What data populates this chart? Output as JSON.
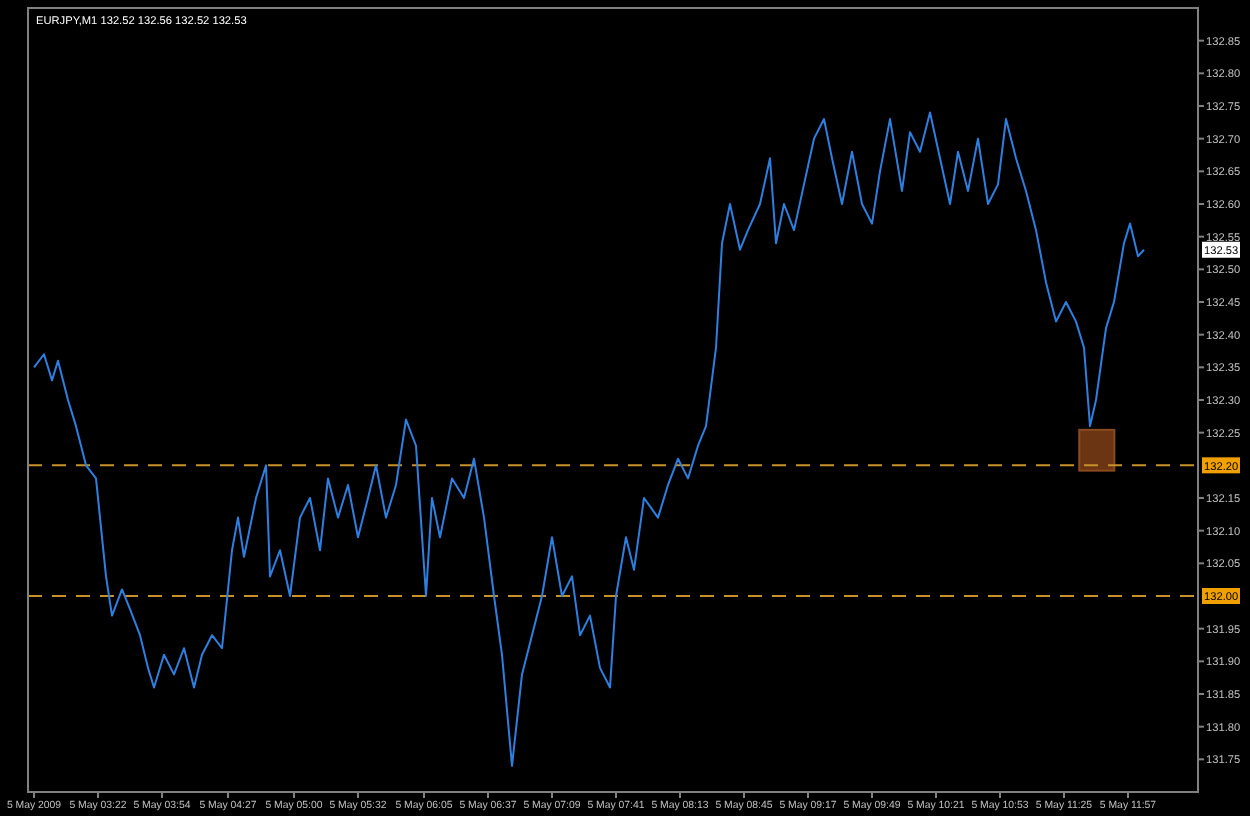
{
  "chart_data": {
    "type": "line",
    "title": "EURJPY,M1  132.52 132.56 132.52 132.53",
    "x": [
      "2009-05-05T02:50",
      "2009-05-05T02:55",
      "2009-05-05T02:59",
      "2009-05-05T03:02",
      "2009-05-05T03:07",
      "2009-05-05T03:11",
      "2009-05-05T03:16",
      "2009-05-05T03:21",
      "2009-05-05T03:26",
      "2009-05-05T03:29",
      "2009-05-05T03:34",
      "2009-05-05T03:38",
      "2009-05-05T03:43",
      "2009-05-05T03:47",
      "2009-05-05T03:50",
      "2009-05-05T03:55",
      "2009-05-05T04:00",
      "2009-05-05T04:05",
      "2009-05-05T04:10",
      "2009-05-05T04:14",
      "2009-05-05T04:19",
      "2009-05-05T04:24",
      "2009-05-05T04:29",
      "2009-05-05T04:32",
      "2009-05-05T04:35",
      "2009-05-05T04:41",
      "2009-05-05T04:46",
      "2009-05-05T04:48",
      "2009-05-05T04:53",
      "2009-05-05T04:58",
      "2009-05-05T05:03",
      "2009-05-05T05:08",
      "2009-05-05T05:13",
      "2009-05-05T05:17",
      "2009-05-05T05:22",
      "2009-05-05T05:27",
      "2009-05-05T05:32",
      "2009-05-05T05:37",
      "2009-05-05T05:41",
      "2009-05-05T05:46",
      "2009-05-05T05:51",
      "2009-05-05T05:56",
      "2009-05-05T06:01",
      "2009-05-05T06:06",
      "2009-05-05T06:09",
      "2009-05-05T06:13",
      "2009-05-05T06:19",
      "2009-05-05T06:25",
      "2009-05-05T06:30",
      "2009-05-05T06:35",
      "2009-05-05T06:40",
      "2009-05-05T06:44",
      "2009-05-05T06:49",
      "2009-05-05T06:54",
      "2009-05-05T06:59",
      "2009-05-05T07:04",
      "2009-05-05T07:09",
      "2009-05-05T07:14",
      "2009-05-05T07:19",
      "2009-05-05T07:23",
      "2009-05-05T07:28",
      "2009-05-05T07:33",
      "2009-05-05T07:38",
      "2009-05-05T07:41",
      "2009-05-05T07:46",
      "2009-05-05T07:50",
      "2009-05-05T07:55",
      "2009-05-05T08:02",
      "2009-05-05T08:07",
      "2009-05-05T08:12",
      "2009-05-05T08:17",
      "2009-05-05T08:22",
      "2009-05-05T08:26",
      "2009-05-05T08:31",
      "2009-05-05T08:34",
      "2009-05-05T08:38",
      "2009-05-05T08:43",
      "2009-05-05T08:47",
      "2009-05-05T08:53",
      "2009-05-05T08:58",
      "2009-05-05T09:01",
      "2009-05-05T09:05",
      "2009-05-05T09:10",
      "2009-05-05T09:15",
      "2009-05-05T09:20",
      "2009-05-05T09:25",
      "2009-05-05T09:29",
      "2009-05-05T09:34",
      "2009-05-05T09:39",
      "2009-05-05T09:44",
      "2009-05-05T09:49",
      "2009-05-05T09:53",
      "2009-05-05T09:58",
      "2009-05-05T10:04",
      "2009-05-05T10:08",
      "2009-05-05T10:13",
      "2009-05-05T10:18",
      "2009-05-05T10:23",
      "2009-05-05T10:28",
      "2009-05-05T10:32",
      "2009-05-05T10:37",
      "2009-05-05T10:42",
      "2009-05-05T10:47",
      "2009-05-05T10:52",
      "2009-05-05T10:56",
      "2009-05-05T11:01",
      "2009-05-05T11:06",
      "2009-05-05T11:11",
      "2009-05-05T11:16",
      "2009-05-05T11:21",
      "2009-05-05T11:26",
      "2009-05-05T11:31",
      "2009-05-05T11:35",
      "2009-05-05T11:38",
      "2009-05-05T11:41",
      "2009-05-05T11:46",
      "2009-05-05T11:50",
      "2009-05-05T11:55",
      "2009-05-05T11:58",
      "2009-05-05T12:02",
      "2009-05-05T12:05"
    ],
    "series": [
      {
        "color": "#2f7fe0",
        "values": [
          132.35,
          132.37,
          132.33,
          132.36,
          132.3,
          132.26,
          132.2,
          132.18,
          132.03,
          131.97,
          132.01,
          131.98,
          131.94,
          131.89,
          131.86,
          131.91,
          131.88,
          131.92,
          131.86,
          131.91,
          131.94,
          131.92,
          132.07,
          132.12,
          132.06,
          132.15,
          132.2,
          132.03,
          132.07,
          132.0,
          132.12,
          132.15,
          132.07,
          132.18,
          132.12,
          132.17,
          132.09,
          132.15,
          132.2,
          132.12,
          132.17,
          132.27,
          132.23,
          132.0,
          132.15,
          132.09,
          132.18,
          132.15,
          132.21,
          132.12,
          132.0,
          131.91,
          131.74,
          131.88,
          131.94,
          132.0,
          132.09,
          132.0,
          132.03,
          131.94,
          131.97,
          131.89,
          131.86,
          132.0,
          132.09,
          132.04,
          132.15,
          132.12,
          132.17,
          132.21,
          132.18,
          132.23,
          132.26,
          132.38,
          132.54,
          132.6,
          132.53,
          132.56,
          132.6,
          132.67,
          132.54,
          132.6,
          132.56,
          132.63,
          132.7,
          132.73,
          132.67,
          132.6,
          132.68,
          132.6,
          132.57,
          132.65,
          132.73,
          132.62,
          132.71,
          132.68,
          132.74,
          132.67,
          132.6,
          132.68,
          132.62,
          132.7,
          132.6,
          132.63,
          132.73,
          132.67,
          132.62,
          132.56,
          132.48,
          132.42,
          132.45,
          132.42,
          132.38,
          132.26,
          132.3,
          132.41,
          132.45,
          132.54,
          132.57,
          132.52,
          132.53
        ]
      }
    ],
    "xlim": [
      "2009-05-05T02:47",
      "2009-05-05T12:32"
    ],
    "xticks": [
      {
        "value": "2009-05-05T02:50",
        "label": "5 May 2009"
      },
      {
        "value": "2009-05-05T03:22",
        "label": "5 May 03:22"
      },
      {
        "value": "2009-05-05T03:54",
        "label": "5 May 03:54"
      },
      {
        "value": "2009-05-05T04:27",
        "label": "5 May 04:27"
      },
      {
        "value": "2009-05-05T05:00",
        "label": "5 May 05:00"
      },
      {
        "value": "2009-05-05T05:32",
        "label": "5 May 05:32"
      },
      {
        "value": "2009-05-05T06:05",
        "label": "5 May 06:05"
      },
      {
        "value": "2009-05-05T06:37",
        "label": "5 May 06:37"
      },
      {
        "value": "2009-05-05T07:09",
        "label": "5 May 07:09"
      },
      {
        "value": "2009-05-05T07:41",
        "label": "5 May 07:41"
      },
      {
        "value": "2009-05-05T08:13",
        "label": "5 May 08:13"
      },
      {
        "value": "2009-05-05T08:45",
        "label": "5 May 08:45"
      },
      {
        "value": "2009-05-05T09:17",
        "label": "5 May 09:17"
      },
      {
        "value": "2009-05-05T09:49",
        "label": "5 May 09:49"
      },
      {
        "value": "2009-05-05T10:21",
        "label": "5 May 10:21"
      },
      {
        "value": "2009-05-05T10:53",
        "label": "5 May 10:53"
      },
      {
        "value": "2009-05-05T11:25",
        "label": "5 May 11:25"
      },
      {
        "value": "2009-05-05T11:57",
        "label": "5 May 11:57"
      }
    ],
    "ylim": [
      131.7,
      132.9
    ],
    "yticks": [
      {
        "value": 131.75,
        "label": "131.75"
      },
      {
        "value": 131.8,
        "label": "131.80"
      },
      {
        "value": 131.85,
        "label": "131.85"
      },
      {
        "value": 131.9,
        "label": "131.90"
      },
      {
        "value": 131.95,
        "label": "131.95"
      },
      {
        "value": 132.05,
        "label": "132.05"
      },
      {
        "value": 132.1,
        "label": "132.10"
      },
      {
        "value": 132.15,
        "label": "132.15"
      },
      {
        "value": 132.25,
        "label": "132.25"
      },
      {
        "value": 132.3,
        "label": "132.30"
      },
      {
        "value": 132.35,
        "label": "132.35"
      },
      {
        "value": 132.4,
        "label": "132.40"
      },
      {
        "value": 132.45,
        "label": "132.45"
      },
      {
        "value": 132.5,
        "label": "132.50"
      },
      {
        "value": 132.55,
        "label": "132.55"
      },
      {
        "value": 132.6,
        "label": "132.60"
      },
      {
        "value": 132.65,
        "label": "132.65"
      },
      {
        "value": 132.7,
        "label": "132.70"
      },
      {
        "value": 132.75,
        "label": "132.75"
      },
      {
        "value": 132.8,
        "label": "132.80"
      },
      {
        "value": 132.85,
        "label": "132.85"
      }
    ],
    "ref_lines": [
      {
        "axis": "y",
        "value": 132.2,
        "label": "132.20",
        "color": "#c8902a",
        "line_style": "dashed"
      },
      {
        "axis": "y",
        "value": 132.0,
        "label": "132.00",
        "color": "#c8902a",
        "line_style": "dashed"
      }
    ],
    "annotations": [
      {
        "text": "132.53",
        "y": 132.53
      }
    ],
    "grid": false,
    "marker": "none",
    "line_style": "solid"
  }
}
